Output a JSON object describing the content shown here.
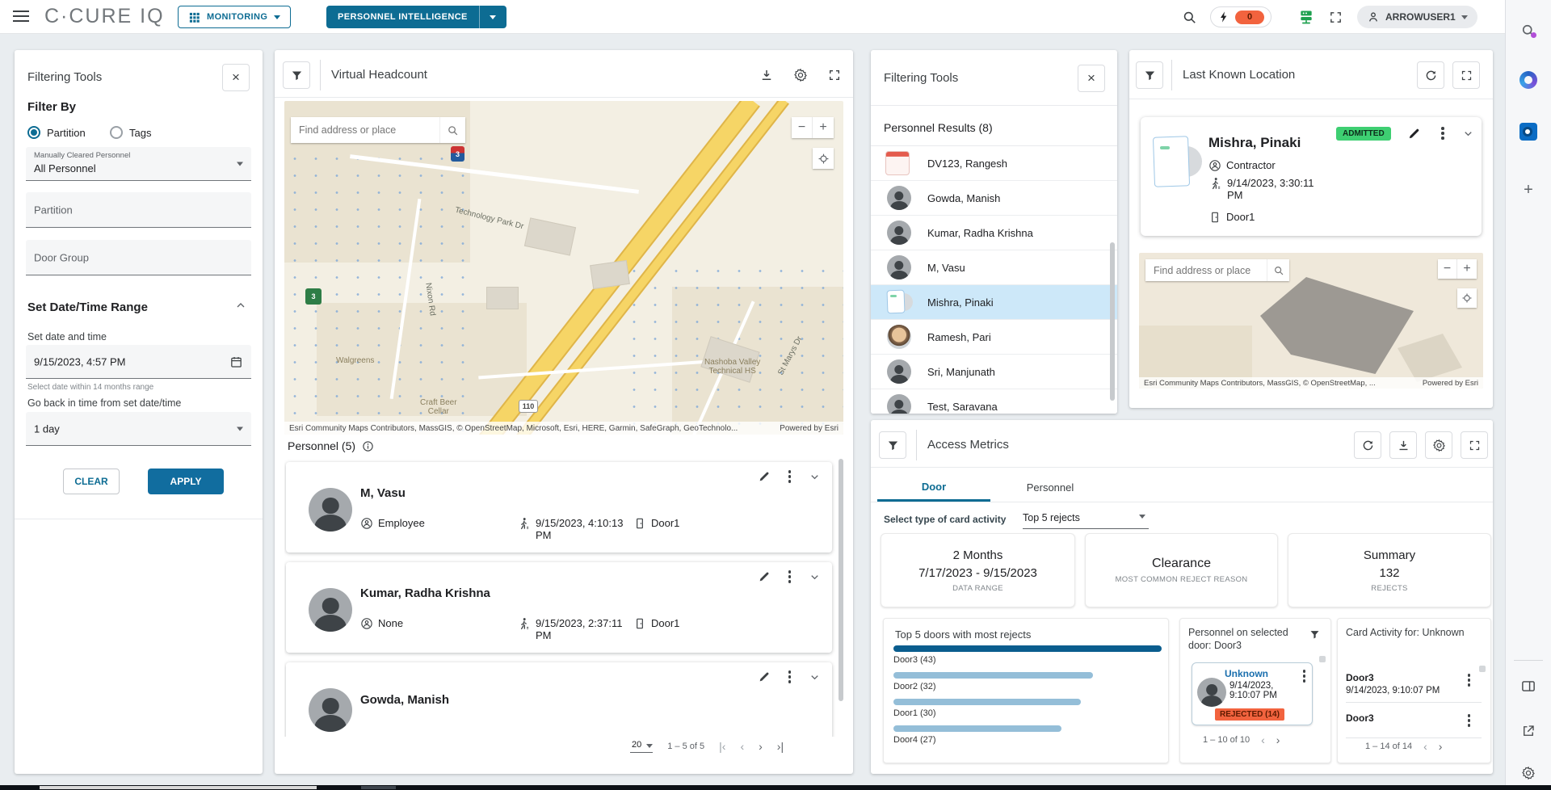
{
  "topbar": {
    "logo": "C·CURE IQ",
    "monitoring_label": "MONITORING",
    "personnel_intelligence_label": "PERSONNEL INTELLIGENCE",
    "alert_count": "0",
    "username": "ARROWUSER1"
  },
  "left_filter": {
    "title": "Filtering Tools",
    "filter_by_label": "Filter By",
    "radio_partition": "Partition",
    "radio_tags": "Tags",
    "cleared_label": "Manually Cleared Personnel",
    "cleared_value": "All Personnel",
    "partition_label": "Partition",
    "door_group_label": "Door Group",
    "date_section_title": "Set Date/Time Range",
    "date_label": "Set date and time",
    "date_value": "9/15/2023, 4:57 PM",
    "date_hint": "Select date within 14 months range",
    "go_back_label": "Go back in time from set date/time",
    "go_back_value": "1 day",
    "clear_label": "CLEAR",
    "apply_label": "APPLY"
  },
  "headcount": {
    "title": "Virtual Headcount",
    "map": {
      "search_placeholder": "Find address or place",
      "zoom_out": "−",
      "zoom_in": "+",
      "labels": {
        "road1": "Technology Park Dr",
        "road2": "Nixon Rd",
        "road3": "St Marys Dr",
        "poi1": "Walgreens",
        "poi2a": "Nashoba Valley",
        "poi2b": "Technical HS",
        "poi3": "Craft Beer",
        "poi3b": "Cellar",
        "shield_110": "110",
        "shield_3": "3"
      },
      "attribution": "Esri Community Maps Contributors, MassGIS, © OpenStreetMap, Microsoft, Esri, HERE, Garmin, SafeGraph, GeoTechnolo...",
      "powered_by": "Powered by Esri"
    },
    "list_title": "Personnel (5)",
    "cards": [
      {
        "name": "M, Vasu",
        "type": "Employee",
        "time": "9/15/2023, 4:10:13 PM",
        "door": "Door1"
      },
      {
        "name": "Kumar, Radha Krishna",
        "type": "None",
        "time": "9/15/2023, 2:37:11 PM",
        "door": "Door1"
      },
      {
        "name": "Gowda, Manish"
      }
    ],
    "pagination": {
      "page_size": "20",
      "range": "1 – 5 of 5",
      "first": "|‹",
      "prev": "‹",
      "next": "›",
      "last": "›|"
    }
  },
  "results": {
    "title": "Filtering Tools",
    "header": "Personnel Results (8)",
    "items": [
      {
        "name": "DV123, Rangesh"
      },
      {
        "name": "Gowda, Manish"
      },
      {
        "name": "Kumar, Radha Krishna"
      },
      {
        "name": "M, Vasu"
      },
      {
        "name": "Mishra, Pinaki"
      },
      {
        "name": "Ramesh, Pari"
      },
      {
        "name": "Sri, Manjunath"
      },
      {
        "name": "Test, Saravana"
      }
    ]
  },
  "location": {
    "title": "Last Known Location",
    "status": "ADMITTED",
    "person": {
      "name": "Mishra, Pinaki",
      "type": "Contractor",
      "time": "9/14/2023, 3:30:11 PM",
      "door": "Door1"
    },
    "map": {
      "search_placeholder": "Find address or place",
      "zoom_out": "−",
      "zoom_in": "+",
      "attribution": "Esri Community Maps Contributors, MassGIS, © OpenStreetMap, ...",
      "powered_by": "Powered by Esri"
    }
  },
  "metrics": {
    "title": "Access Metrics",
    "tabs": [
      "Door",
      "Personnel"
    ],
    "select_label": "Select type of card activity",
    "select_value": "Top 5 rejects",
    "summary_cards": [
      {
        "line1": "2 Months",
        "line2": "7/17/2023 - 9/15/2023",
        "caption": "DATA RANGE"
      },
      {
        "line1": "Clearance",
        "line2": "",
        "caption": "MOST COMMON REJECT REASON"
      },
      {
        "line1": "Summary",
        "line2": "132",
        "caption": "REJECTS"
      }
    ],
    "door_chart": {
      "title": "Top 5 doors with most rejects",
      "bar_labels": [
        "Door3 (43)",
        "Door2 (32)",
        "Door1 (30)",
        "Door4 (27)"
      ]
    },
    "door_personnel": {
      "title": "Personnel on selected door: Door3",
      "card": {
        "name": "Unknown",
        "time": "9/14/2023, 9:10:07 PM",
        "badge": "REJECTED (14)"
      },
      "range": "1 – 10 of 10",
      "prev": "‹",
      "next": "›"
    },
    "card_activity": {
      "title": "Card Activity for: Unknown",
      "entries": [
        {
          "door": "Door3",
          "time": "9/14/2023, 9:10:07 PM"
        },
        {
          "door": "Door3",
          "time": ""
        }
      ],
      "range": "1 – 14 of 14",
      "prev": "‹",
      "next": "›"
    }
  },
  "chart_data": {
    "type": "bar",
    "orientation": "horizontal",
    "title": "Top 5 doors with most rejects",
    "categories": [
      "Door3",
      "Door2",
      "Door1",
      "Door4"
    ],
    "values": [
      43,
      32,
      30,
      27
    ],
    "max": 43,
    "colors": {
      "first": "#0a5d8e",
      "rest": "#94bed8"
    },
    "legend": false
  }
}
